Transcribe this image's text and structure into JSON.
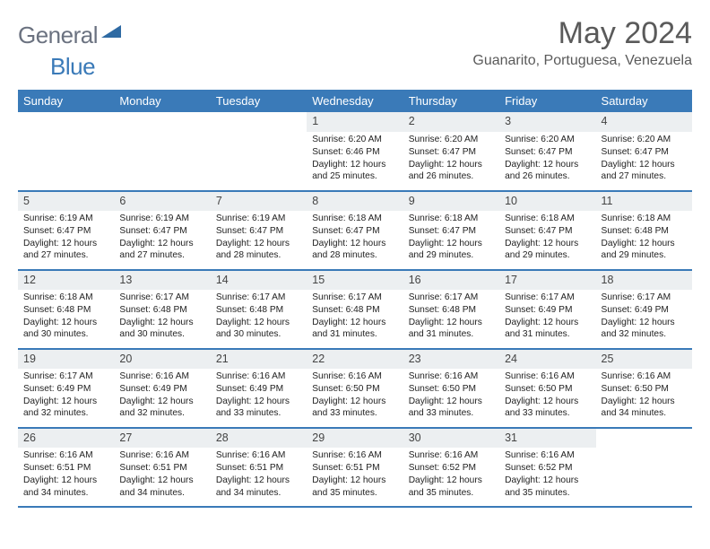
{
  "brand": {
    "part1": "General",
    "part2": "Blue"
  },
  "title": "May 2024",
  "location": "Guanarito, Portuguesa, Venezuela",
  "accent_color": "#3a7ab8",
  "daynum_bg": "#eceff1",
  "weekdays": [
    "Sunday",
    "Monday",
    "Tuesday",
    "Wednesday",
    "Thursday",
    "Friday",
    "Saturday"
  ],
  "weeks": [
    {
      "nums": [
        "",
        "",
        "",
        "1",
        "2",
        "3",
        "4"
      ],
      "cells": [
        null,
        null,
        null,
        {
          "sr": "Sunrise: 6:20 AM",
          "ss": "Sunset: 6:46 PM",
          "d1": "Daylight: 12 hours",
          "d2": "and 25 minutes."
        },
        {
          "sr": "Sunrise: 6:20 AM",
          "ss": "Sunset: 6:47 PM",
          "d1": "Daylight: 12 hours",
          "d2": "and 26 minutes."
        },
        {
          "sr": "Sunrise: 6:20 AM",
          "ss": "Sunset: 6:47 PM",
          "d1": "Daylight: 12 hours",
          "d2": "and 26 minutes."
        },
        {
          "sr": "Sunrise: 6:20 AM",
          "ss": "Sunset: 6:47 PM",
          "d1": "Daylight: 12 hours",
          "d2": "and 27 minutes."
        }
      ]
    },
    {
      "nums": [
        "5",
        "6",
        "7",
        "8",
        "9",
        "10",
        "11"
      ],
      "cells": [
        {
          "sr": "Sunrise: 6:19 AM",
          "ss": "Sunset: 6:47 PM",
          "d1": "Daylight: 12 hours",
          "d2": "and 27 minutes."
        },
        {
          "sr": "Sunrise: 6:19 AM",
          "ss": "Sunset: 6:47 PM",
          "d1": "Daylight: 12 hours",
          "d2": "and 27 minutes."
        },
        {
          "sr": "Sunrise: 6:19 AM",
          "ss": "Sunset: 6:47 PM",
          "d1": "Daylight: 12 hours",
          "d2": "and 28 minutes."
        },
        {
          "sr": "Sunrise: 6:18 AM",
          "ss": "Sunset: 6:47 PM",
          "d1": "Daylight: 12 hours",
          "d2": "and 28 minutes."
        },
        {
          "sr": "Sunrise: 6:18 AM",
          "ss": "Sunset: 6:47 PM",
          "d1": "Daylight: 12 hours",
          "d2": "and 29 minutes."
        },
        {
          "sr": "Sunrise: 6:18 AM",
          "ss": "Sunset: 6:47 PM",
          "d1": "Daylight: 12 hours",
          "d2": "and 29 minutes."
        },
        {
          "sr": "Sunrise: 6:18 AM",
          "ss": "Sunset: 6:48 PM",
          "d1": "Daylight: 12 hours",
          "d2": "and 29 minutes."
        }
      ]
    },
    {
      "nums": [
        "12",
        "13",
        "14",
        "15",
        "16",
        "17",
        "18"
      ],
      "cells": [
        {
          "sr": "Sunrise: 6:18 AM",
          "ss": "Sunset: 6:48 PM",
          "d1": "Daylight: 12 hours",
          "d2": "and 30 minutes."
        },
        {
          "sr": "Sunrise: 6:17 AM",
          "ss": "Sunset: 6:48 PM",
          "d1": "Daylight: 12 hours",
          "d2": "and 30 minutes."
        },
        {
          "sr": "Sunrise: 6:17 AM",
          "ss": "Sunset: 6:48 PM",
          "d1": "Daylight: 12 hours",
          "d2": "and 30 minutes."
        },
        {
          "sr": "Sunrise: 6:17 AM",
          "ss": "Sunset: 6:48 PM",
          "d1": "Daylight: 12 hours",
          "d2": "and 31 minutes."
        },
        {
          "sr": "Sunrise: 6:17 AM",
          "ss": "Sunset: 6:48 PM",
          "d1": "Daylight: 12 hours",
          "d2": "and 31 minutes."
        },
        {
          "sr": "Sunrise: 6:17 AM",
          "ss": "Sunset: 6:49 PM",
          "d1": "Daylight: 12 hours",
          "d2": "and 31 minutes."
        },
        {
          "sr": "Sunrise: 6:17 AM",
          "ss": "Sunset: 6:49 PM",
          "d1": "Daylight: 12 hours",
          "d2": "and 32 minutes."
        }
      ]
    },
    {
      "nums": [
        "19",
        "20",
        "21",
        "22",
        "23",
        "24",
        "25"
      ],
      "cells": [
        {
          "sr": "Sunrise: 6:17 AM",
          "ss": "Sunset: 6:49 PM",
          "d1": "Daylight: 12 hours",
          "d2": "and 32 minutes."
        },
        {
          "sr": "Sunrise: 6:16 AM",
          "ss": "Sunset: 6:49 PM",
          "d1": "Daylight: 12 hours",
          "d2": "and 32 minutes."
        },
        {
          "sr": "Sunrise: 6:16 AM",
          "ss": "Sunset: 6:49 PM",
          "d1": "Daylight: 12 hours",
          "d2": "and 33 minutes."
        },
        {
          "sr": "Sunrise: 6:16 AM",
          "ss": "Sunset: 6:50 PM",
          "d1": "Daylight: 12 hours",
          "d2": "and 33 minutes."
        },
        {
          "sr": "Sunrise: 6:16 AM",
          "ss": "Sunset: 6:50 PM",
          "d1": "Daylight: 12 hours",
          "d2": "and 33 minutes."
        },
        {
          "sr": "Sunrise: 6:16 AM",
          "ss": "Sunset: 6:50 PM",
          "d1": "Daylight: 12 hours",
          "d2": "and 33 minutes."
        },
        {
          "sr": "Sunrise: 6:16 AM",
          "ss": "Sunset: 6:50 PM",
          "d1": "Daylight: 12 hours",
          "d2": "and 34 minutes."
        }
      ]
    },
    {
      "nums": [
        "26",
        "27",
        "28",
        "29",
        "30",
        "31",
        ""
      ],
      "cells": [
        {
          "sr": "Sunrise: 6:16 AM",
          "ss": "Sunset: 6:51 PM",
          "d1": "Daylight: 12 hours",
          "d2": "and 34 minutes."
        },
        {
          "sr": "Sunrise: 6:16 AM",
          "ss": "Sunset: 6:51 PM",
          "d1": "Daylight: 12 hours",
          "d2": "and 34 minutes."
        },
        {
          "sr": "Sunrise: 6:16 AM",
          "ss": "Sunset: 6:51 PM",
          "d1": "Daylight: 12 hours",
          "d2": "and 34 minutes."
        },
        {
          "sr": "Sunrise: 6:16 AM",
          "ss": "Sunset: 6:51 PM",
          "d1": "Daylight: 12 hours",
          "d2": "and 35 minutes."
        },
        {
          "sr": "Sunrise: 6:16 AM",
          "ss": "Sunset: 6:52 PM",
          "d1": "Daylight: 12 hours",
          "d2": "and 35 minutes."
        },
        {
          "sr": "Sunrise: 6:16 AM",
          "ss": "Sunset: 6:52 PM",
          "d1": "Daylight: 12 hours",
          "d2": "and 35 minutes."
        },
        null
      ]
    }
  ]
}
